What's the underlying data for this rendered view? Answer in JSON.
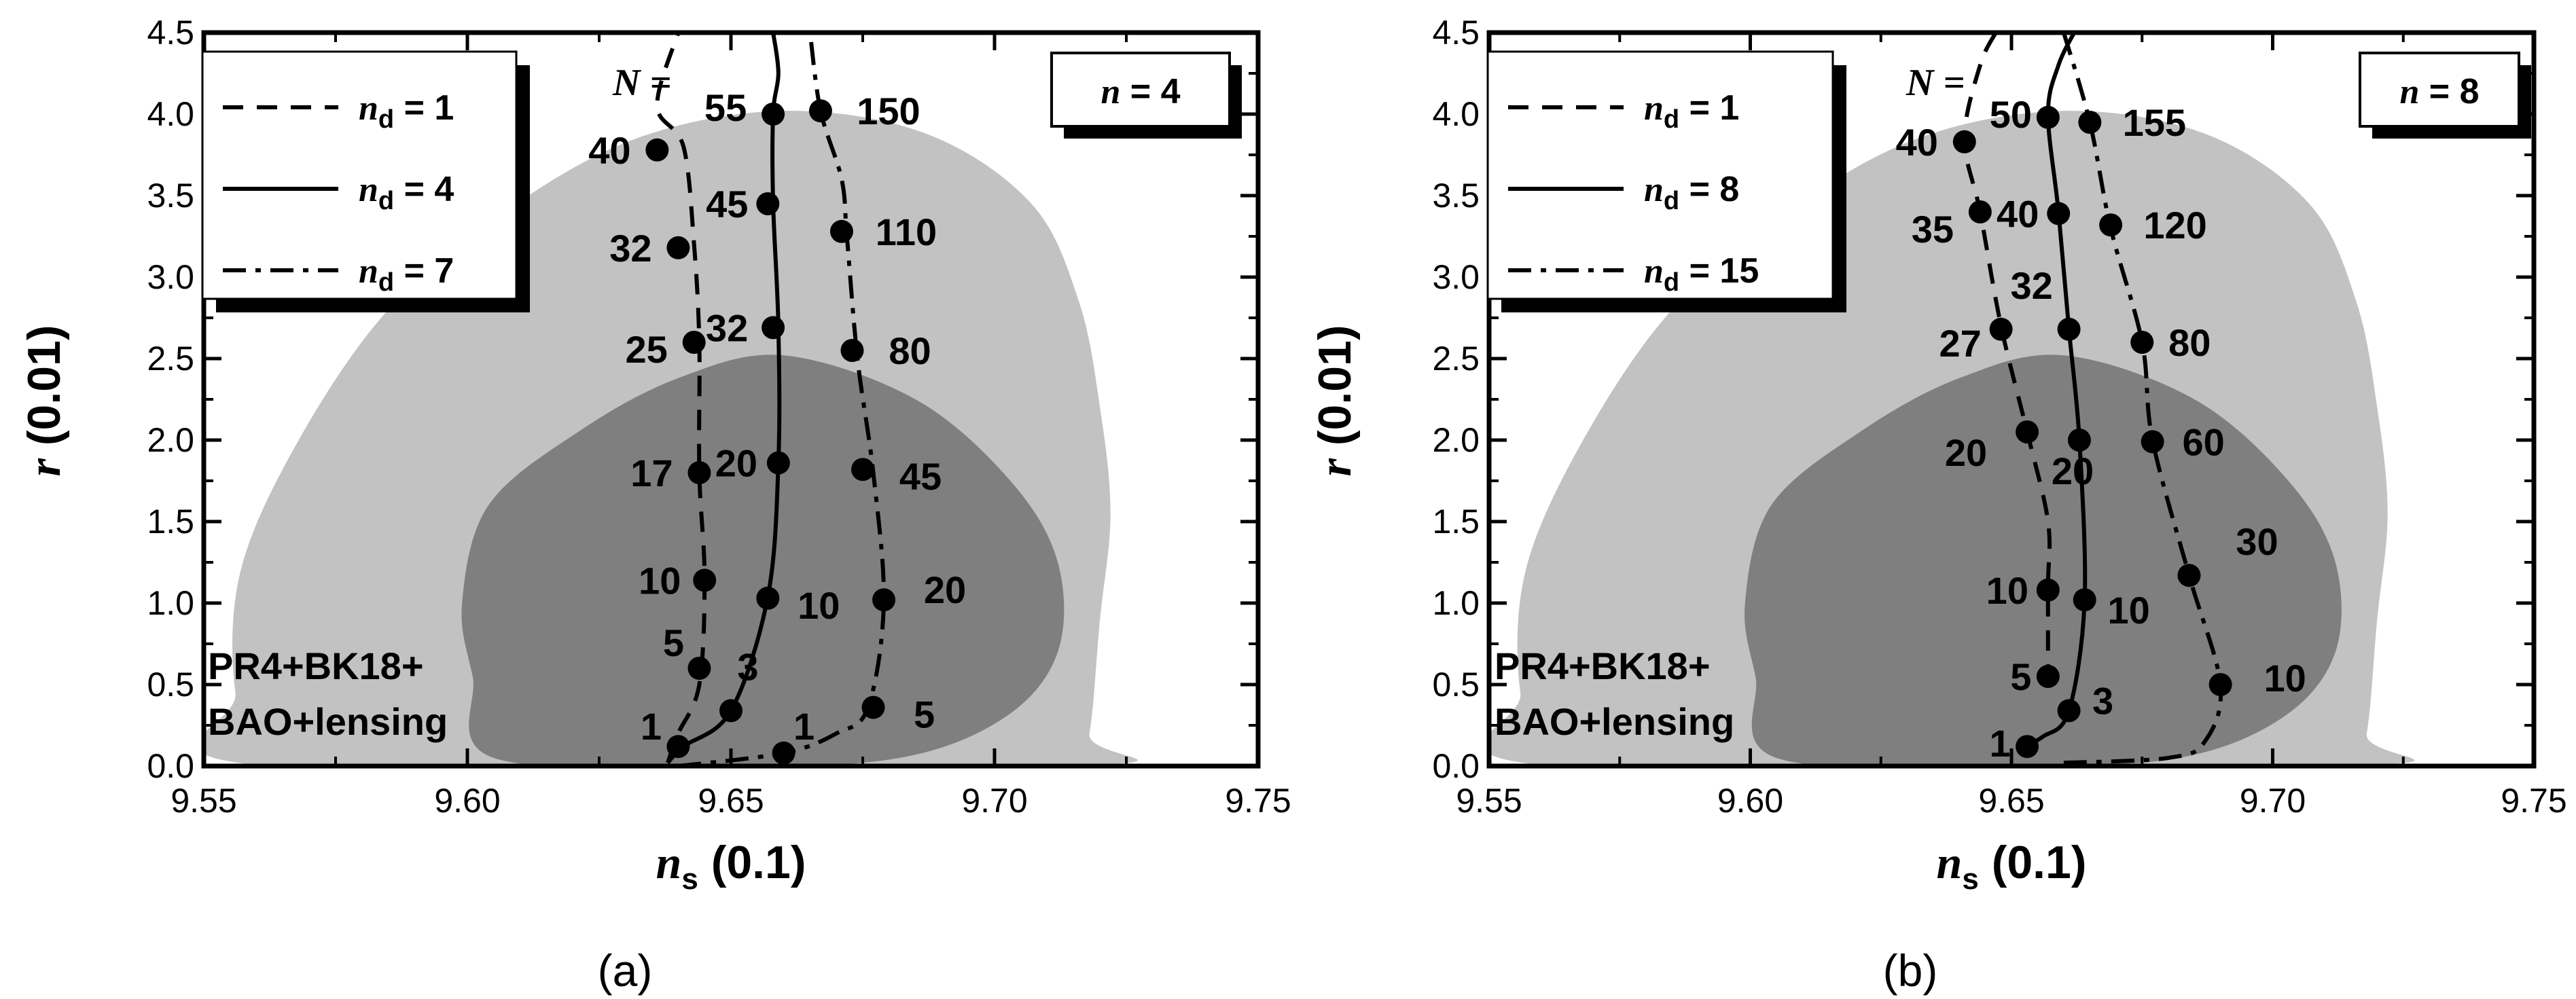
{
  "colors": {
    "outer_region": "#c2c2c2",
    "inner_region": "#7f7f7f",
    "lines": "#000000",
    "background": "#ffffff"
  },
  "chart_data": [
    {
      "type": "line",
      "caption": "(a)",
      "n_label": "n = 4",
      "data_label": [
        "PR4+BK18+",
        "BAO+lensing"
      ],
      "N_label": "N =",
      "xlabel": {
        "sym": "n",
        "sub": "s",
        "unit": "(0.1)"
      },
      "ylabel": {
        "sym": "r",
        "unit": "(0.01)"
      },
      "xlim": [
        9.55,
        9.75
      ],
      "ylim": [
        0.0,
        4.5
      ],
      "xticks": [
        "9.55",
        "9.60",
        "9.65",
        "9.70",
        "9.75"
      ],
      "yticks": [
        "0.0",
        "0.5",
        "1.0",
        "1.5",
        "2.0",
        "2.5",
        "3.0",
        "3.5",
        "4.0",
        "4.5"
      ],
      "legend": [
        {
          "pre": "n",
          "sub": "d",
          "post": " = 1",
          "style": "dashed"
        },
        {
          "pre": "n",
          "sub": "d",
          "post": " = 4",
          "style": "solid"
        },
        {
          "pre": "n",
          "sub": "d",
          "post": " = 7",
          "style": "dashdot"
        }
      ],
      "regions": {
        "outer": [
          [
            9.562,
            0
          ],
          [
            9.556,
            0.45
          ],
          [
            9.557,
            1.2
          ],
          [
            9.568,
            2.0
          ],
          [
            9.585,
            2.8
          ],
          [
            9.607,
            3.4
          ],
          [
            9.632,
            3.85
          ],
          [
            9.66,
            4.02
          ],
          [
            9.687,
            3.88
          ],
          [
            9.707,
            3.45
          ],
          [
            9.716,
            2.85
          ],
          [
            9.72,
            2.2
          ],
          [
            9.722,
            1.55
          ],
          [
            9.72,
            0.9
          ],
          [
            9.718,
            0.2
          ],
          [
            9.715,
            0
          ]
        ],
        "inner": [
          [
            9.605,
            0.05
          ],
          [
            9.601,
            0.55
          ],
          [
            9.599,
            1.0
          ],
          [
            9.604,
            1.6
          ],
          [
            9.621,
            2.05
          ],
          [
            9.64,
            2.38
          ],
          [
            9.66,
            2.52
          ],
          [
            9.685,
            2.25
          ],
          [
            9.703,
            1.75
          ],
          [
            9.712,
            1.25
          ],
          [
            9.712,
            0.7
          ],
          [
            9.702,
            0.3
          ],
          [
            9.682,
            0.05
          ],
          [
            9.65,
            0.0
          ]
        ]
      },
      "series": [
        {
          "name": "n_d = 1",
          "style": "dashed",
          "x": [
            9.638,
            9.64,
            9.644,
            9.645,
            9.644,
            9.644,
            9.643,
            9.641,
            9.636,
            9.64
          ],
          "y": [
            0.02,
            0.2,
            0.5,
            1.15,
            1.8,
            2.6,
            3.2,
            3.8,
            4.05,
            4.5
          ],
          "points": [
            {
              "x": 9.644,
              "y": 0.6,
              "label": "5"
            },
            {
              "x": 9.645,
              "y": 1.14,
              "label": "10"
            },
            {
              "x": 9.644,
              "y": 1.8,
              "label": "17"
            },
            {
              "x": 9.643,
              "y": 2.6,
              "label": "25"
            },
            {
              "x": 9.64,
              "y": 3.18,
              "label": "32"
            },
            {
              "x": 9.636,
              "y": 3.78,
              "label": "40"
            }
          ]
        },
        {
          "name": "n_d = 4",
          "style": "solid",
          "x": [
            9.638,
            9.641,
            9.65,
            9.657,
            9.659,
            9.659,
            9.658,
            9.658,
            9.659,
            9.658
          ],
          "y": [
            0.02,
            0.12,
            0.34,
            1.04,
            1.86,
            2.7,
            3.45,
            4.0,
            4.25,
            4.5
          ],
          "points": [
            {
              "x": 9.64,
              "y": 0.12,
              "label": "1"
            },
            {
              "x": 9.65,
              "y": 0.34,
              "label": "3"
            },
            {
              "x": 9.657,
              "y": 1.03,
              "label": "10"
            },
            {
              "x": 9.659,
              "y": 1.86,
              "label": "20"
            },
            {
              "x": 9.658,
              "y": 2.69,
              "label": "32"
            },
            {
              "x": 9.657,
              "y": 3.45,
              "label": "45"
            },
            {
              "x": 9.658,
              "y": 4.0,
              "label": "55"
            }
          ]
        },
        {
          "name": "n_d = 7",
          "style": "dashdot",
          "x": [
            9.64,
            9.66,
            9.67,
            9.676,
            9.679,
            9.677,
            9.674,
            9.672,
            9.671,
            9.667,
            9.665
          ],
          "y": [
            0.0,
            0.08,
            0.2,
            0.36,
            1.0,
            1.8,
            2.5,
            3.25,
            3.6,
            4.02,
            4.5
          ],
          "points": [
            {
              "x": 9.66,
              "y": 0.08,
              "label": "1"
            },
            {
              "x": 9.677,
              "y": 0.36,
              "label": "5"
            },
            {
              "x": 9.679,
              "y": 1.02,
              "label": "20"
            },
            {
              "x": 9.675,
              "y": 1.82,
              "label": "45"
            },
            {
              "x": 9.673,
              "y": 2.55,
              "label": "80"
            },
            {
              "x": 9.671,
              "y": 3.28,
              "label": "110"
            },
            {
              "x": 9.667,
              "y": 4.02,
              "label": "150"
            }
          ]
        }
      ]
    },
    {
      "type": "line",
      "caption": "(b)",
      "n_label": "n = 8",
      "data_label": [
        "PR4+BK18+",
        "BAO+lensing"
      ],
      "N_label": "N =",
      "xlabel": {
        "sym": "n",
        "sub": "s",
        "unit": "(0.1)"
      },
      "ylabel": {
        "sym": "r",
        "unit": "(0.01)"
      },
      "xlim": [
        9.55,
        9.75
      ],
      "ylim": [
        0.0,
        4.5
      ],
      "xticks": [
        "9.55",
        "9.60",
        "9.65",
        "9.70",
        "9.75"
      ],
      "yticks": [
        "0.0",
        "0.5",
        "1.0",
        "1.5",
        "2.0",
        "2.5",
        "3.0",
        "3.5",
        "4.0",
        "4.5"
      ],
      "legend": [
        {
          "pre": "n",
          "sub": "d",
          "post": " = 1",
          "style": "dashed"
        },
        {
          "pre": "n",
          "sub": "d",
          "post": " = 8",
          "style": "solid"
        },
        {
          "pre": "n",
          "sub": "d",
          "post": " = 15",
          "style": "dashdot"
        }
      ],
      "regions": {
        "outer": [
          [
            9.562,
            0
          ],
          [
            9.556,
            0.45
          ],
          [
            9.557,
            1.2
          ],
          [
            9.568,
            2.0
          ],
          [
            9.585,
            2.8
          ],
          [
            9.607,
            3.4
          ],
          [
            9.632,
            3.85
          ],
          [
            9.66,
            4.02
          ],
          [
            9.687,
            3.88
          ],
          [
            9.707,
            3.45
          ],
          [
            9.716,
            2.85
          ],
          [
            9.72,
            2.2
          ],
          [
            9.722,
            1.55
          ],
          [
            9.72,
            0.9
          ],
          [
            9.718,
            0.2
          ],
          [
            9.715,
            0
          ]
        ],
        "inner": [
          [
            9.605,
            0.05
          ],
          [
            9.601,
            0.55
          ],
          [
            9.599,
            1.0
          ],
          [
            9.604,
            1.6
          ],
          [
            9.621,
            2.05
          ],
          [
            9.64,
            2.38
          ],
          [
            9.66,
            2.52
          ],
          [
            9.685,
            2.25
          ],
          [
            9.703,
            1.75
          ],
          [
            9.712,
            1.25
          ],
          [
            9.712,
            0.7
          ],
          [
            9.702,
            0.3
          ],
          [
            9.682,
            0.05
          ],
          [
            9.65,
            0.0
          ]
        ]
      },
      "series": [
        {
          "name": "n_d = 1",
          "style": "dashed",
          "x": [
            9.657,
            9.657,
            9.657,
            9.653,
            9.648,
            9.644,
            9.641,
            9.644,
            9.647
          ],
          "y": [
            0.5,
            1.1,
            1.5,
            2.05,
            2.7,
            3.4,
            3.85,
            4.3,
            4.5
          ],
          "points": [
            {
              "x": 9.657,
              "y": 0.55,
              "label": "5"
            },
            {
              "x": 9.657,
              "y": 1.08,
              "label": "10"
            },
            {
              "x": 9.653,
              "y": 2.05,
              "label": "20"
            },
            {
              "x": 9.648,
              "y": 2.68,
              "label": "27"
            },
            {
              "x": 9.644,
              "y": 3.4,
              "label": "35"
            },
            {
              "x": 9.641,
              "y": 3.83,
              "label": "40"
            }
          ]
        },
        {
          "name": "n_d = 8",
          "style": "solid",
          "x": [
            9.652,
            9.656,
            9.661,
            9.664,
            9.663,
            9.661,
            9.659,
            9.657,
            9.659,
            9.662
          ],
          "y": [
            0.12,
            0.18,
            0.34,
            1.02,
            2.0,
            2.68,
            3.4,
            4.0,
            4.3,
            4.5
          ],
          "points": [
            {
              "x": 9.653,
              "y": 0.12,
              "label": "1"
            },
            {
              "x": 9.661,
              "y": 0.34,
              "label": "3"
            },
            {
              "x": 9.664,
              "y": 1.02,
              "label": "10"
            },
            {
              "x": 9.663,
              "y": 2.0,
              "label": "20"
            },
            {
              "x": 9.661,
              "y": 2.68,
              "label": "32"
            },
            {
              "x": 9.659,
              "y": 3.39,
              "label": "40"
            },
            {
              "x": 9.657,
              "y": 3.98,
              "label": "50"
            }
          ]
        },
        {
          "name": "n_d = 15",
          "style": "dashdot",
          "x": [
            9.66,
            9.68,
            9.687,
            9.69,
            9.684,
            9.677,
            9.675,
            9.669,
            9.665,
            9.66
          ],
          "y": [
            0.02,
            0.05,
            0.15,
            0.5,
            1.17,
            2.0,
            2.6,
            3.3,
            3.95,
            4.5
          ],
          "points": [
            {
              "x": 9.69,
              "y": 0.5,
              "label": "10"
            },
            {
              "x": 9.684,
              "y": 1.17,
              "label": "30"
            },
            {
              "x": 9.677,
              "y": 1.99,
              "label": "60"
            },
            {
              "x": 9.675,
              "y": 2.6,
              "label": "80"
            },
            {
              "x": 9.669,
              "y": 3.32,
              "label": "120"
            },
            {
              "x": 9.665,
              "y": 3.95,
              "label": "155"
            }
          ]
        }
      ]
    }
  ]
}
